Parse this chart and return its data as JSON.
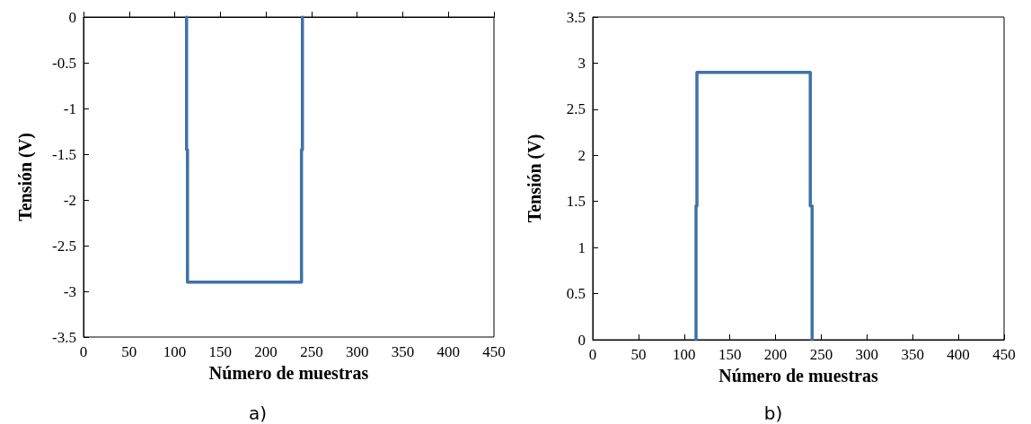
{
  "chart_data": [
    {
      "type": "line",
      "xlabel": "Número de muestras",
      "ylabel": "Tensión (V)",
      "xlim": [
        0,
        450
      ],
      "xticks": [
        0,
        50,
        100,
        150,
        200,
        250,
        300,
        350,
        400,
        450
      ],
      "ylim": [
        -3.5,
        0
      ],
      "yticks": [
        -3.5,
        -3,
        -2.5,
        -2,
        -1.5,
        -1,
        -0.5,
        0
      ],
      "annotations": [
        "a)"
      ],
      "series": [
        {
          "color": "#3f73a8",
          "x": [
            113,
            113,
            114,
            114,
            239,
            239,
            240,
            240
          ],
          "values": [
            0,
            -1.45,
            -1.45,
            -2.9,
            -2.9,
            -1.45,
            -1.45,
            0
          ]
        }
      ]
    },
    {
      "type": "line",
      "xlabel": "Número de muestras",
      "ylabel": "Tensión (V)",
      "xlim": [
        0,
        450
      ],
      "xticks": [
        0,
        50,
        100,
        150,
        200,
        250,
        300,
        350,
        400,
        450
      ],
      "ylim": [
        0,
        3.5
      ],
      "yticks": [
        0,
        0.5,
        1,
        1.5,
        2,
        2.5,
        3,
        3.5
      ],
      "annotations": [
        "b)"
      ],
      "series": [
        {
          "color": "#3f73a8",
          "x": [
            113,
            113,
            114,
            114,
            238,
            238,
            240,
            240
          ],
          "values": [
            0,
            1.45,
            1.45,
            2.9,
            2.9,
            1.45,
            1.45,
            0
          ]
        }
      ]
    }
  ]
}
